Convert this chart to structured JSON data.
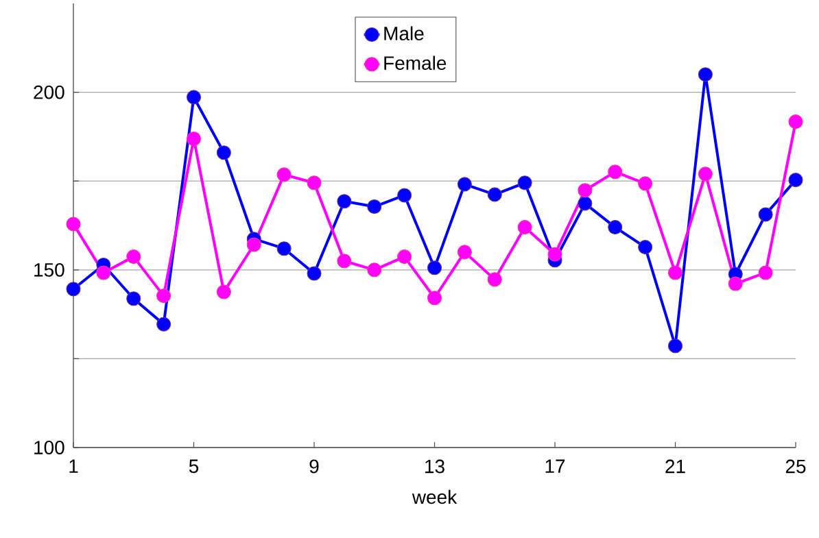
{
  "chart_data": {
    "type": "line",
    "xlabel": "week",
    "x": [
      1,
      2,
      3,
      4,
      5,
      6,
      7,
      8,
      9,
      10,
      11,
      12,
      13,
      14,
      15,
      16,
      17,
      18,
      19,
      20,
      21,
      22,
      23,
      24,
      25
    ],
    "series": [
      {
        "name": "Male",
        "color": "#0000ff",
        "values": [
          144.6,
          151.4,
          141.9,
          134.7,
          198.6,
          183.0,
          158.7,
          156.0,
          149.0,
          169.3,
          167.8,
          171.0,
          150.6,
          174.1,
          171.2,
          174.5,
          152.7,
          168.7,
          162.0,
          156.4,
          128.6,
          205.0,
          148.8,
          165.6,
          175.3
        ]
      },
      {
        "name": "Female",
        "color": "#ff00ff",
        "values": [
          162.9,
          149.2,
          153.7,
          142.7,
          186.9,
          143.8,
          157.1,
          176.8,
          174.5,
          152.5,
          150.0,
          153.7,
          142.1,
          155.0,
          147.3,
          162.0,
          154.4,
          172.4,
          177.6,
          174.3,
          149.2,
          177.0,
          146.1,
          149.2,
          191.7
        ]
      }
    ],
    "xlim": [
      1,
      25
    ],
    "xticks": [
      1,
      5,
      9,
      13,
      17,
      21,
      25
    ],
    "ylim": [
      100,
      225
    ],
    "yticks": [
      100,
      {
        "value": 125,
        "label": null
      },
      150,
      {
        "value": 175,
        "label": null
      },
      200
    ],
    "grid": "y",
    "legend": "top",
    "marker": "circle",
    "line_style": "solid"
  }
}
